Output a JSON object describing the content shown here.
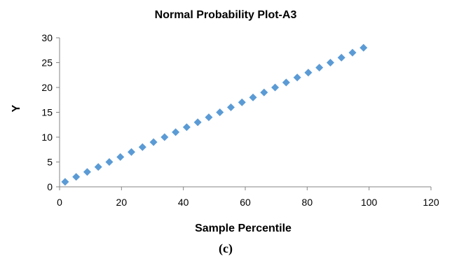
{
  "chart_data": {
    "type": "scatter",
    "title": "Normal Probability Plot-A3",
    "xlabel": "Sample Percentile",
    "ylabel": "Y",
    "xlim": [
      0,
      120
    ],
    "ylim": [
      0,
      30
    ],
    "xticks": [
      0,
      20,
      40,
      60,
      80,
      100,
      120
    ],
    "yticks": [
      0,
      5,
      10,
      15,
      20,
      25,
      30
    ],
    "grid": false,
    "legend": "none",
    "marker": "diamond",
    "color": "#5b9bd5",
    "series": [
      {
        "x": [
          1.79,
          5.36,
          8.93,
          12.5,
          16.07,
          19.64,
          23.21,
          26.79,
          30.36,
          33.93,
          37.5,
          41.07,
          44.64,
          48.21,
          51.79,
          55.36,
          58.93,
          62.5,
          66.07,
          69.64,
          73.21,
          76.79,
          80.36,
          83.93,
          87.5,
          91.07,
          94.64,
          98.21
        ],
        "y": [
          1,
          2,
          3,
          4,
          5,
          6,
          7,
          8,
          9,
          10,
          11,
          12,
          13,
          14,
          15,
          16,
          17,
          18,
          19,
          20,
          21,
          22,
          23,
          24,
          25,
          26,
          27,
          28
        ]
      }
    ]
  },
  "caption": "(c)"
}
